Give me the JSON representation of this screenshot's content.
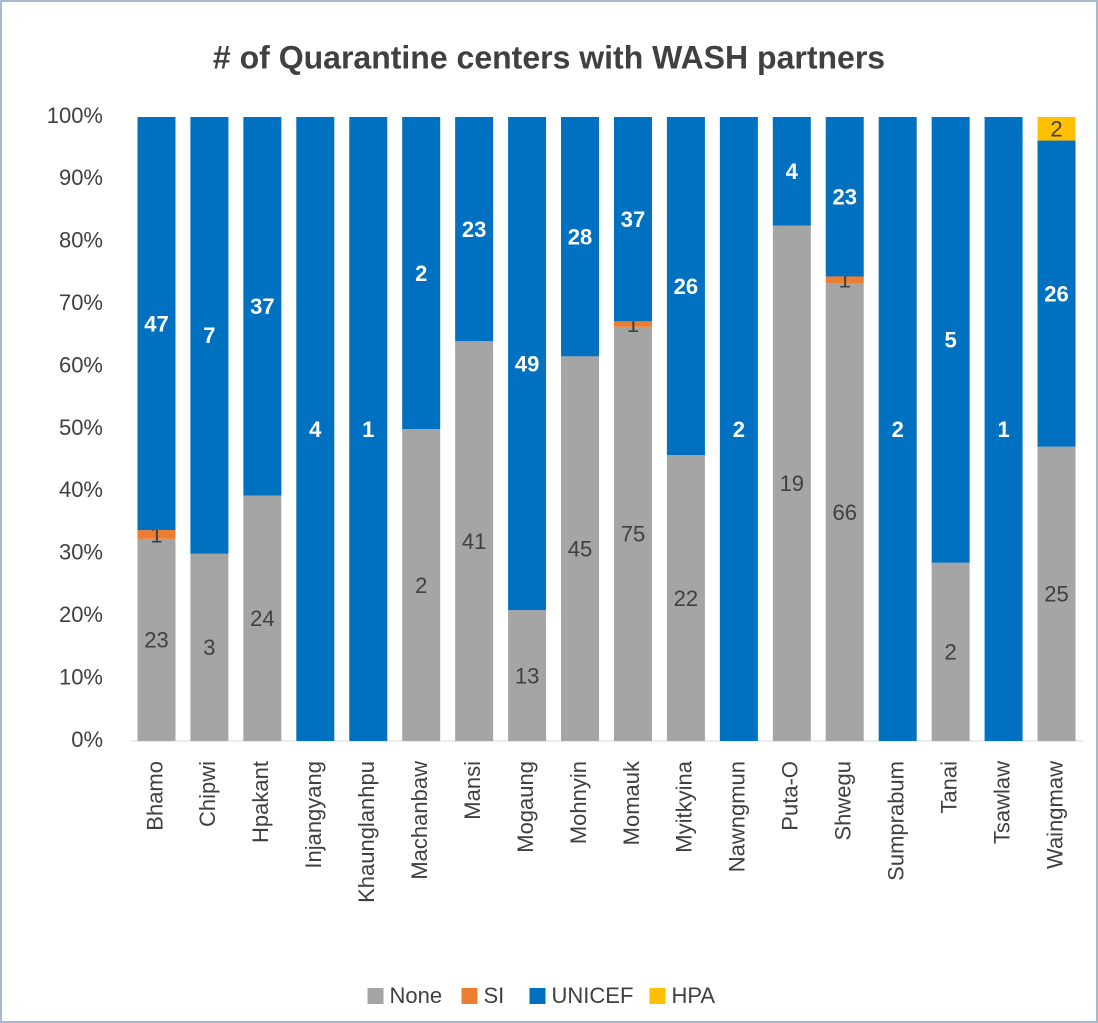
{
  "chart_data": {
    "type": "stacked_bar",
    "stack": "percent",
    "title": "# of Quarantine centers with WASH partners",
    "categories": [
      "Bhamo",
      "Chipwi",
      "Hpakant",
      "Injangyang",
      "Khaunglanhpu",
      "Machanbaw",
      "Mansi",
      "Mogaung",
      "Mohnyin",
      "Momauk",
      "Myitkyina",
      "Nawngmun",
      "Puta-O",
      "Shwegu",
      "Sumprabum",
      "Tanai",
      "Tsawlaw",
      "Waingmaw"
    ],
    "series": [
      {
        "name": "None",
        "color": "#a5a5a5",
        "label_color": "#404040",
        "label_bold": false,
        "values": [
          23,
          3,
          24,
          0,
          0,
          2,
          41,
          13,
          45,
          75,
          22,
          0,
          19,
          66,
          0,
          2,
          0,
          25
        ]
      },
      {
        "name": "SI",
        "color": "#ed7d31",
        "label_color": "#404040",
        "label_bold": false,
        "values": [
          1,
          0,
          0,
          0,
          0,
          0,
          0,
          0,
          0,
          1,
          0,
          0,
          0,
          1,
          0,
          0,
          0,
          0
        ]
      },
      {
        "name": "UNICEF",
        "color": "#0070c0",
        "label_color": "#ffffff",
        "label_bold": true,
        "values": [
          47,
          7,
          37,
          4,
          1,
          2,
          23,
          49,
          28,
          37,
          26,
          2,
          4,
          23,
          2,
          5,
          1,
          26
        ]
      },
      {
        "name": "HPA",
        "color": "#ffc000",
        "label_color": "#404040",
        "label_bold": false,
        "values": [
          0,
          0,
          0,
          0,
          0,
          0,
          0,
          0,
          0,
          0,
          0,
          0,
          0,
          0,
          0,
          0,
          0,
          2
        ]
      }
    ],
    "ylim": [
      0,
      100
    ],
    "yticks": [
      {
        "value": 0,
        "label": "0%"
      },
      {
        "value": 10,
        "label": "10%"
      },
      {
        "value": 20,
        "label": "20%"
      },
      {
        "value": 30,
        "label": "30%"
      },
      {
        "value": 40,
        "label": "40%"
      },
      {
        "value": 50,
        "label": "50%"
      },
      {
        "value": 60,
        "label": "60%"
      },
      {
        "value": 70,
        "label": "70%"
      },
      {
        "value": 80,
        "label": "80%"
      },
      {
        "value": 90,
        "label": "90%"
      },
      {
        "value": 100,
        "label": "100%"
      }
    ],
    "grid": false,
    "legend": "bottom"
  }
}
